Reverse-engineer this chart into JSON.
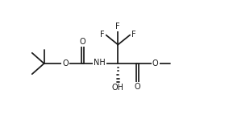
{
  "bg": "#ffffff",
  "lc": "#1a1a1a",
  "lw": 1.25,
  "fs": 7.0,
  "figsize": [
    2.84,
    1.58
  ],
  "dpi": 100,
  "xlim": [
    -0.3,
    10.3
  ],
  "ylim": [
    0.2,
    6.8
  ]
}
